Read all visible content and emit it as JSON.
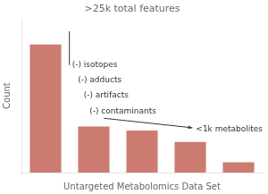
{
  "chart_data": {
    "type": "bar",
    "title": ">25k total features",
    "xlabel": "Untargeted Metabolomics Data Set",
    "ylabel": "Count",
    "categories": [
      null,
      null,
      null,
      null,
      null
    ],
    "values": [
      25,
      9,
      8.2,
      6,
      2
    ],
    "color": "#cc7b70",
    "ylim": [
      0,
      30
    ],
    "tick_labels": false,
    "grid": false,
    "annotations": [
      "(-) isotopes",
      "(-) adducts",
      "(-) artifacts",
      "(-) contaminants",
      "<1k metabolites"
    ]
  }
}
